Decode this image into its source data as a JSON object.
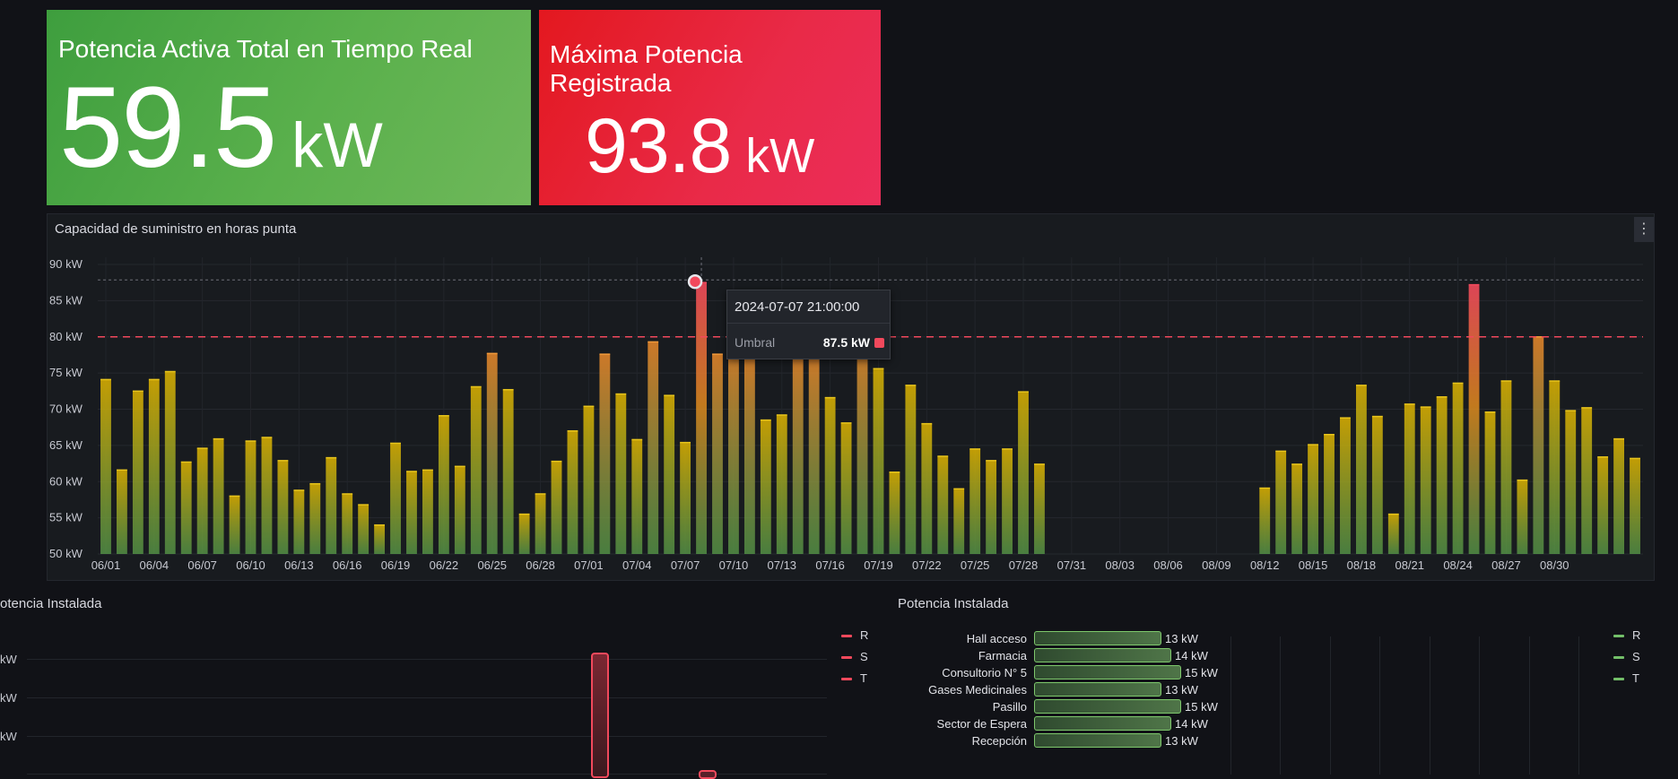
{
  "stat_current": {
    "title": "Potencia Activa Total en Tiempo Real",
    "value": "59.5",
    "unit": "kW"
  },
  "stat_max": {
    "title": "Máxima Potencia Registrada",
    "value": "93.8",
    "unit": "kW"
  },
  "colors": {
    "green": "#56a64b",
    "red": "#e02f44",
    "threshold": "#f2495c",
    "bar_top_yellow": "#e0b400",
    "bar_bottom_green": "#5a9e4a"
  },
  "bar_panel": {
    "title": "Capacidad de suministro en horas punta",
    "menu_icon": "vertical-dots-icon"
  },
  "tooltip": {
    "time": "2024-07-07 21:00:00",
    "series": "Umbral",
    "value": "87.5 kW"
  },
  "chart_data": {
    "type": "bar",
    "title": "Capacidad de suministro en horas punta",
    "unit": "kW",
    "ylim": [
      50,
      90
    ],
    "y_ticks": [
      "50 kW",
      "55 kW",
      "60 kW",
      "65 kW",
      "70 kW",
      "75 kW",
      "80 kW",
      "85 kW",
      "90 kW"
    ],
    "threshold": 80,
    "x_tick_labels": [
      "06/01",
      "06/04",
      "06/07",
      "06/10",
      "06/13",
      "06/16",
      "06/19",
      "06/22",
      "06/25",
      "06/28",
      "07/01",
      "07/04",
      "07/07",
      "07/10",
      "07/13",
      "07/16",
      "07/19",
      "07/22",
      "07/25",
      "07/28",
      "07/31",
      "08/03",
      "08/06",
      "08/09",
      "08/12",
      "08/15",
      "08/18",
      "08/21",
      "08/24",
      "08/27",
      "08/30"
    ],
    "start_date": "2024-06-01",
    "values": [
      74.1,
      61.6,
      72.5,
      74.1,
      75.2,
      62.7,
      64.6,
      65.9,
      58.0,
      65.6,
      66.1,
      62.9,
      58.8,
      59.7,
      63.3,
      58.3,
      56.8,
      54.0,
      65.3,
      61.4,
      61.6,
      69.1,
      62.1,
      73.1,
      77.7,
      72.7,
      55.5,
      58.3,
      62.8,
      67.0,
      70.4,
      77.6,
      72.1,
      65.8,
      79.3,
      71.9,
      65.4,
      87.5,
      77.6,
      78.7,
      77.5,
      68.5,
      69.2,
      77.5,
      77.6,
      71.6,
      68.1,
      79.3,
      75.6,
      61.3,
      73.3,
      68.0,
      63.5,
      59.0,
      64.5,
      62.9,
      64.5,
      72.4,
      62.4,
      null,
      null,
      null,
      null,
      null,
      null,
      null,
      null,
      null,
      null,
      null,
      null,
      null,
      59.1,
      64.2,
      62.4,
      65.1,
      66.5,
      68.8,
      73.3,
      69.0,
      55.5,
      70.7,
      70.3,
      71.7,
      73.6,
      87.2,
      69.6,
      73.9,
      60.2,
      80.0,
      73.9,
      69.8,
      70.2,
      63.4,
      65.9,
      63.2
    ]
  },
  "bottom_left": {
    "title": "Potencia Instalada",
    "y_labels": [
      "kW",
      "kW",
      "kW"
    ],
    "legend": [
      "R",
      "S",
      "T"
    ]
  },
  "bottom_right": {
    "title": "Potencia Instalada",
    "legend": [
      "R",
      "S",
      "T"
    ],
    "rows": [
      {
        "label": "Hall acceso",
        "value": 13,
        "text": "13 kW"
      },
      {
        "label": "Farmacia",
        "value": 14,
        "text": "14 kW"
      },
      {
        "label": "Consultorio N° 5",
        "value": 15,
        "text": "15 kW"
      },
      {
        "label": "Gases Medicinales",
        "value": 13,
        "text": "13 kW"
      },
      {
        "label": "Pasillo",
        "value": 15,
        "text": "15 kW"
      },
      {
        "label": "Sector de Espera",
        "value": 14,
        "text": "14 kW"
      },
      {
        "label": "Recepción",
        "value": 13,
        "text": "13 kW"
      }
    ]
  }
}
